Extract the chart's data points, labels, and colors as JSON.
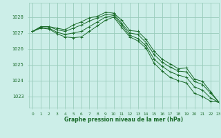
{
  "title": "Graphe pression niveau de la mer (hPa)",
  "bg_color": "#cceee8",
  "grid_color": "#99ccbb",
  "line_color": "#1a6b2a",
  "xlim": [
    -0.5,
    23
  ],
  "ylim": [
    1022.3,
    1028.9
  ],
  "yticks": [
    1023,
    1024,
    1025,
    1026,
    1027,
    1028
  ],
  "xticks": [
    0,
    1,
    2,
    3,
    4,
    5,
    6,
    7,
    8,
    9,
    10,
    11,
    12,
    13,
    14,
    15,
    16,
    17,
    18,
    19,
    20,
    21,
    22,
    23
  ],
  "series": [
    [
      1027.1,
      1027.4,
      1027.4,
      1027.3,
      1027.2,
      1027.5,
      1027.7,
      1027.95,
      1028.05,
      1028.3,
      1028.25,
      1027.8,
      1027.15,
      1027.1,
      1026.6,
      1025.85,
      1025.35,
      1025.05,
      1024.75,
      1024.8,
      1024.1,
      1023.95,
      1023.3,
      1022.65
    ],
    [
      1027.1,
      1027.4,
      1027.4,
      1027.2,
      1027.1,
      1027.3,
      1027.5,
      1027.75,
      1027.95,
      1028.15,
      1028.2,
      1027.6,
      1027.0,
      1026.9,
      1026.4,
      1025.65,
      1025.15,
      1024.85,
      1024.6,
      1024.55,
      1023.95,
      1023.75,
      1023.2,
      1022.65
    ],
    [
      1027.1,
      1027.35,
      1027.3,
      1027.05,
      1026.9,
      1027.0,
      1027.1,
      1027.4,
      1027.7,
      1028.0,
      1028.1,
      1027.5,
      1026.85,
      1026.65,
      1026.2,
      1025.35,
      1024.9,
      1024.55,
      1024.35,
      1024.2,
      1023.6,
      1023.4,
      1022.9,
      1022.65
    ],
    [
      1027.1,
      1027.3,
      1027.25,
      1026.95,
      1026.75,
      1026.7,
      1026.75,
      1027.1,
      1027.45,
      1027.8,
      1028.0,
      1027.35,
      1026.75,
      1026.5,
      1026.05,
      1025.1,
      1024.6,
      1024.2,
      1024.0,
      1023.85,
      1023.2,
      1023.0,
      1022.7,
      1022.65
    ]
  ]
}
